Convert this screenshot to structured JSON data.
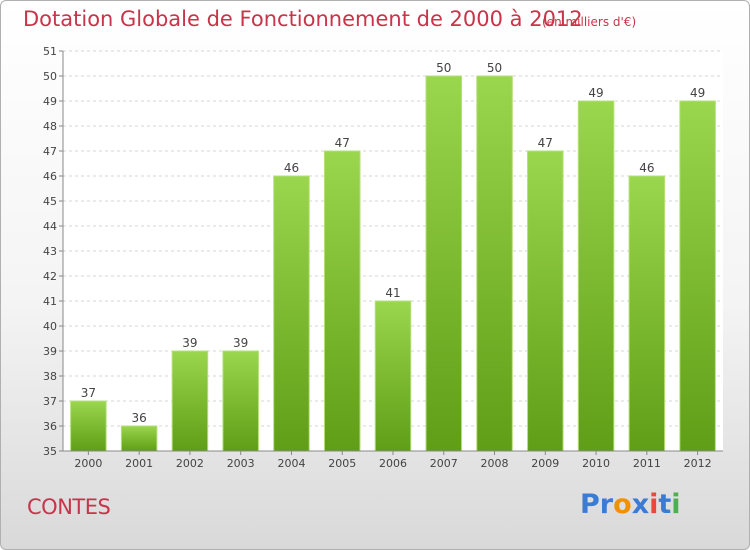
{
  "header": {
    "title": "Dotation Globale de Fonctionnement de 2000 à 2012",
    "unit": "(en milliers d'€)"
  },
  "footer": {
    "town": "CONTES",
    "logo": {
      "letters": [
        "P",
        "r",
        "o",
        "x",
        "i",
        "t",
        "i"
      ],
      "colors": [
        "#3a7bd5",
        "#3a7bd5",
        "#f29100",
        "#3a7bd5",
        "#e8493a",
        "#3a7bd5",
        "#4caf50"
      ]
    }
  },
  "chart_data": {
    "type": "bar",
    "categories": [
      "2000",
      "2001",
      "2002",
      "2003",
      "2004",
      "2005",
      "2006",
      "2007",
      "2008",
      "2009",
      "2010",
      "2011",
      "2012"
    ],
    "values": [
      37,
      36,
      39,
      39,
      46,
      47,
      41,
      50,
      50,
      47,
      49,
      46,
      49
    ],
    "yticks": [
      35,
      36,
      37,
      38,
      39,
      40,
      41,
      42,
      43,
      44,
      45,
      46,
      47,
      48,
      49,
      50,
      51
    ],
    "ylim": [
      35,
      51
    ],
    "grid": true,
    "bar_color": "#80c232"
  }
}
